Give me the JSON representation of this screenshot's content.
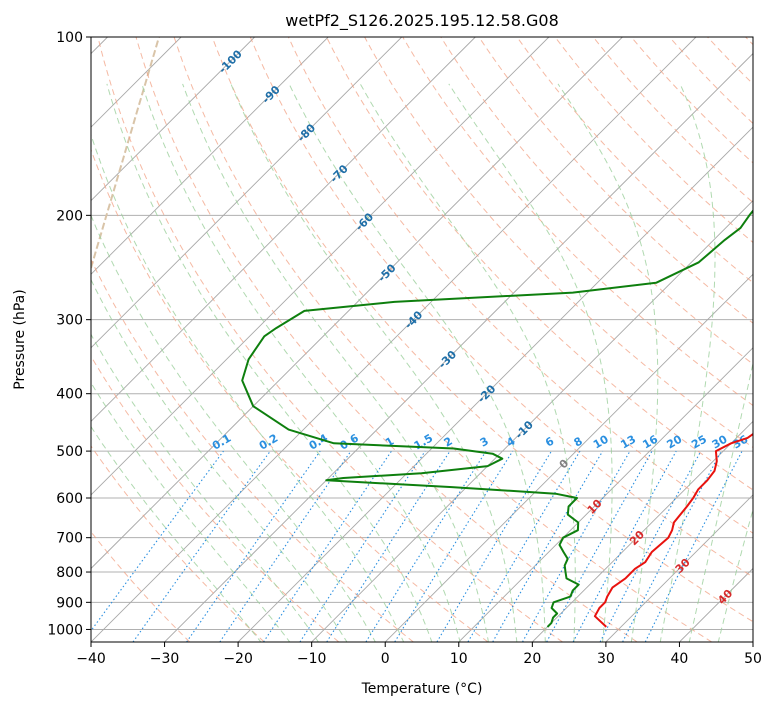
{
  "chart_data": {
    "type": "line",
    "title": "wetPf2_S126.2025.195.12.58.G08",
    "xlabel": "Temperature (°C)",
    "ylabel": "Pressure (hPa)",
    "xlim": [
      -40,
      50
    ],
    "ylim": [
      1050,
      100
    ],
    "y_scale": "log",
    "x_ticks": [
      -40,
      -30,
      -20,
      -10,
      0,
      10,
      20,
      30,
      40,
      50
    ],
    "x_tick_labels": [
      "−40",
      "−30",
      "−20",
      "−10",
      "0",
      "10",
      "20",
      "30",
      "40",
      "50"
    ],
    "y_ticks": [
      1000,
      900,
      800,
      700,
      600,
      500,
      400,
      300,
      200,
      100
    ],
    "y_tick_labels": [
      "1000",
      "900",
      "800",
      "700",
      "600",
      "500",
      "400",
      "300",
      "200",
      "100"
    ],
    "grid": true,
    "skew": "temperature isotherms skewed 45°",
    "colors": {
      "temperature": "#e8120e",
      "dewpoint": "#0e7f0e",
      "isotherm": "#9a9a9a",
      "dry_adiabat": "#f2a184",
      "moist_adiabat": "#9ccf9c",
      "mixing_ratio": "#2a8fe0",
      "isotherm_label": "#1f6fa8",
      "adiabat_label": "#d62a2a",
      "tan_curve": "#d9c4a8"
    },
    "series": [
      {
        "name": "",
        "role": "temperature",
        "points": [
          [
            28,
            990
          ],
          [
            25,
            950
          ],
          [
            24.5,
            920
          ],
          [
            24.5,
            900
          ],
          [
            24,
            880
          ],
          [
            23.5,
            850
          ],
          [
            24,
            820
          ],
          [
            24,
            790
          ],
          [
            24.5,
            770
          ],
          [
            24,
            740
          ],
          [
            24.3,
            700
          ],
          [
            23.8,
            680
          ],
          [
            23,
            660
          ],
          [
            22.8,
            640
          ],
          [
            22.6,
            620
          ],
          [
            22.3,
            600
          ],
          [
            21.8,
            580
          ],
          [
            21.8,
            560
          ],
          [
            21.5,
            540
          ],
          [
            20.5,
            520
          ],
          [
            19,
            500
          ],
          [
            20,
            485
          ],
          [
            21.5,
            475
          ],
          [
            22,
            460
          ],
          [
            22,
            440
          ],
          [
            22,
            420
          ],
          [
            21.5,
            400
          ],
          [
            20,
            380
          ],
          [
            18.5,
            360
          ],
          [
            17.5,
            340
          ],
          [
            16,
            320
          ],
          [
            14,
            300
          ],
          [
            12.5,
            280
          ],
          [
            11,
            260
          ],
          [
            9.5,
            240
          ],
          [
            7.5,
            220
          ],
          [
            5.5,
            200
          ],
          [
            3.8,
            185
          ],
          [
            2,
            170
          ],
          [
            0.8,
            160
          ],
          [
            0,
            150
          ],
          [
            -1.5,
            140
          ],
          [
            -2.8,
            130
          ],
          [
            -3.8,
            120
          ],
          [
            -4.2,
            113
          ],
          [
            -2.5,
            106
          ],
          [
            2.5,
            100
          ]
        ]
      },
      {
        "name": "",
        "role": "dewpoint",
        "points": [
          [
            20,
            990
          ],
          [
            20,
            975
          ],
          [
            19.5,
            955
          ],
          [
            19.5,
            940
          ],
          [
            18,
            920
          ],
          [
            17.5,
            900
          ],
          [
            19,
            880
          ],
          [
            18.5,
            860
          ],
          [
            18.5,
            840
          ],
          [
            16,
            820
          ],
          [
            15,
            800
          ],
          [
            14,
            780
          ],
          [
            13.5,
            760
          ],
          [
            12,
            740
          ],
          [
            10.5,
            720
          ],
          [
            10,
            700
          ],
          [
            11,
            680
          ],
          [
            10,
            660
          ],
          [
            7.5,
            640
          ],
          [
            6.5,
            620
          ],
          [
            6.5,
            600
          ],
          [
            3,
            590
          ],
          [
            -12,
            575
          ],
          [
            -30,
            560
          ],
          [
            -28,
            555
          ],
          [
            -18,
            545
          ],
          [
            -10,
            530
          ],
          [
            -9,
            515
          ],
          [
            -11,
            505
          ],
          [
            -17,
            495
          ],
          [
            -34,
            485
          ],
          [
            -42,
            460
          ],
          [
            -50,
            420
          ],
          [
            -55,
            380
          ],
          [
            -57,
            350
          ],
          [
            -58,
            320
          ],
          [
            -57.5,
            310
          ],
          [
            -56,
            290
          ],
          [
            -45,
            280
          ],
          [
            -22,
            270
          ],
          [
            -12,
            260
          ],
          [
            -9,
            240
          ],
          [
            -8.5,
            220
          ],
          [
            -8,
            210
          ],
          [
            -8.5,
            200
          ],
          [
            -9,
            185
          ],
          [
            -10,
            170
          ],
          [
            -11,
            160
          ],
          [
            -11.5,
            150
          ],
          [
            -13,
            140
          ],
          [
            -14,
            130
          ],
          [
            -15,
            125
          ],
          [
            -15.5,
            120
          ],
          [
            -15.5,
            115
          ],
          [
            -15.2,
            110
          ],
          [
            -14.5,
            106
          ],
          [
            -13.5,
            102
          ],
          [
            -12.5,
            100
          ]
        ]
      }
    ],
    "isotherm_labels": {
      "values": [
        -100,
        -90,
        -80,
        -70,
        -60,
        -50,
        -40,
        -30,
        -20,
        -10
      ],
      "labels": [
        "-100",
        "-90",
        "-80",
        "-70",
        "-60",
        "-50",
        "-40",
        "-30",
        "-20",
        "-10"
      ]
    },
    "freezing_label": {
      "value": 0,
      "label": "0"
    },
    "adiabat_labels": {
      "values": [
        10,
        20,
        30,
        40
      ],
      "labels": [
        "10",
        "20",
        "30",
        "40"
      ]
    },
    "mixing_ratio_lines": {
      "values": [
        0.1,
        0.2,
        0.4,
        0.6,
        1,
        1.5,
        2,
        3,
        4,
        6,
        8,
        10,
        13,
        16,
        20,
        25,
        30,
        36
      ],
      "labels": [
        "0.1",
        "0.2",
        "0.4",
        "0.6",
        "1",
        "1.5",
        "2",
        "3",
        "4",
        "6",
        "8",
        "10",
        "13",
        "16",
        "20",
        "25",
        "30",
        "36"
      ],
      "top_pressure": 500
    }
  }
}
